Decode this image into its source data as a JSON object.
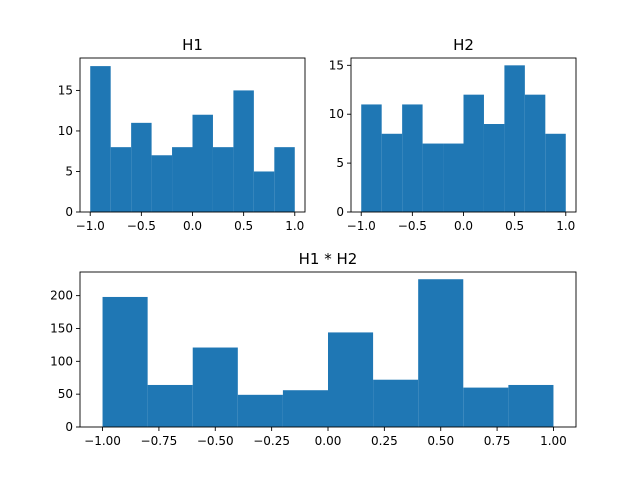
{
  "chart_data": [
    {
      "id": "h1",
      "type": "bar",
      "title": "H1",
      "bin_edges": [
        -1.0,
        -0.8,
        -0.6,
        -0.4,
        -0.2,
        0.0,
        0.2,
        0.4,
        0.6,
        0.8,
        1.0
      ],
      "values": [
        18,
        8,
        11,
        7,
        8,
        12,
        8,
        15,
        5,
        8
      ],
      "xlim": [
        -1.1,
        1.1
      ],
      "ylim": [
        0,
        19
      ],
      "xticks": [
        -1.0,
        -0.5,
        0.0,
        0.5,
        1.0
      ],
      "xtick_labels": [
        "−1.0",
        "−0.5",
        "0.0",
        "0.5",
        "1.0"
      ],
      "yticks": [
        0,
        5,
        10,
        15
      ],
      "ytick_labels": [
        "0",
        "5",
        "10",
        "15"
      ],
      "color": "#1f77b4",
      "grid": false
    },
    {
      "id": "h2",
      "type": "bar",
      "title": "H2",
      "bin_edges": [
        -1.0,
        -0.8,
        -0.6,
        -0.4,
        -0.2,
        0.0,
        0.2,
        0.4,
        0.6,
        0.8,
        1.0
      ],
      "values": [
        11,
        8,
        11,
        7,
        7,
        12,
        9,
        15,
        12,
        8
      ],
      "xlim": [
        -1.1,
        1.1
      ],
      "ylim": [
        0,
        15.75
      ],
      "xticks": [
        -1.0,
        -0.5,
        0.0,
        0.5,
        1.0
      ],
      "xtick_labels": [
        "−1.0",
        "−0.5",
        "0.0",
        "0.5",
        "1.0"
      ],
      "yticks": [
        0,
        5,
        10,
        15
      ],
      "ytick_labels": [
        "0",
        "5",
        "10",
        "15"
      ],
      "color": "#1f77b4",
      "grid": false
    },
    {
      "id": "h12",
      "type": "bar",
      "title": "H1 * H2",
      "bin_edges": [
        -1.0,
        -0.8,
        -0.6,
        -0.4,
        -0.2,
        0.0,
        0.2,
        0.4,
        0.6,
        0.8,
        1.0
      ],
      "values": [
        198,
        64,
        121,
        49,
        56,
        144,
        72,
        225,
        60,
        64
      ],
      "xlim": [
        -1.1,
        1.1
      ],
      "ylim": [
        0,
        236
      ],
      "xticks": [
        -1.0,
        -0.75,
        -0.5,
        -0.25,
        0.0,
        0.25,
        0.5,
        0.75,
        1.0
      ],
      "xtick_labels": [
        "−1.00",
        "−0.75",
        "−0.50",
        "−0.25",
        "0.00",
        "0.25",
        "0.50",
        "0.75",
        "1.00"
      ],
      "yticks": [
        0,
        50,
        100,
        150,
        200
      ],
      "ytick_labels": [
        "0",
        "50",
        "100",
        "150",
        "200"
      ],
      "color": "#1f77b4",
      "grid": false
    }
  ]
}
